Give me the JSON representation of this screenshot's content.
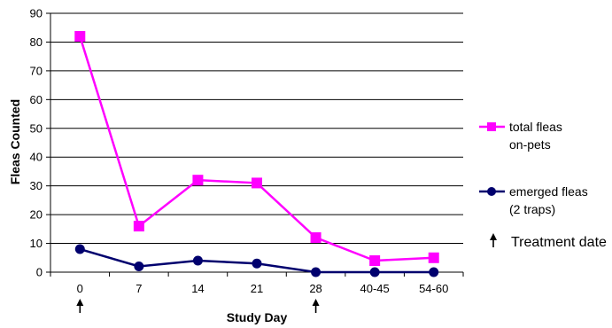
{
  "chart_data": {
    "type": "line",
    "categories": [
      "0",
      "7",
      "14",
      "21",
      "28",
      "40-45",
      "54-60"
    ],
    "series": [
      {
        "name": "total fleas on-pets",
        "legend_lines": [
          "total fleas",
          "on-pets"
        ],
        "color": "#ff00ff",
        "marker": "square",
        "values": [
          82,
          16,
          32,
          31,
          12,
          4,
          5
        ]
      },
      {
        "name": "emerged fleas (2 traps)",
        "legend_lines": [
          "emerged fleas",
          "(2 traps)"
        ],
        "color": "#00006e",
        "marker": "circle",
        "values": [
          8,
          2,
          4,
          3,
          0,
          0,
          0
        ]
      }
    ],
    "xlabel": "Study Day",
    "ylabel": "Fleas Counted",
    "ylim": [
      0,
      90
    ],
    "yticks": [
      0,
      10,
      20,
      30,
      40,
      50,
      60,
      70,
      80,
      90
    ],
    "grid": "horizontal",
    "legend_position": "right",
    "annotation": {
      "label": "Treatment date",
      "marked_categories": [
        "0",
        "28"
      ]
    }
  }
}
